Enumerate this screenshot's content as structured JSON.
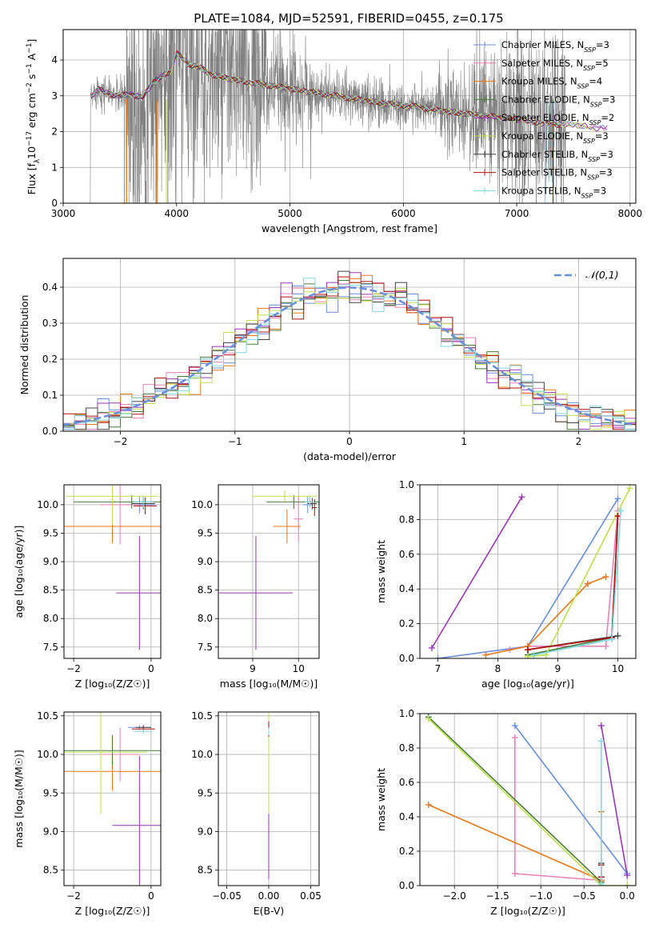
{
  "title": "PLATE=1084, MJD=52591, FIBERID=0455, z=0.175",
  "colors": {
    "chabrier_miles": "#6a8fdc",
    "salpeter_miles": "#e882b8",
    "kroupa_miles": "#e8781a",
    "chabrier_elodie": "#4a7c3a",
    "salpeter_elodie": "#9b36b9",
    "kroupa_elodie": "#c0e050",
    "chabrier_stelib": "#444444",
    "salpeter_stelib": "#b01010",
    "kroupa_stelib": "#80d8e0",
    "data": "#808080"
  },
  "chart_data": [
    {
      "id": "spectrum",
      "type": "line",
      "xlabel": "wavelength [Angstrom, rest frame]",
      "ylabel_parts": [
        "Flux [f",
        "λ",
        "10",
        "−17",
        " erg cm",
        "−2",
        " s",
        "−1",
        " A",
        "−1",
        "]"
      ],
      "xlim": [
        3000,
        8050
      ],
      "ylim": [
        0,
        4.85
      ],
      "xticks": [
        3000,
        4000,
        5000,
        6000,
        7000,
        8000
      ],
      "yticks": [
        0,
        1,
        2,
        3,
        4
      ],
      "legend": [
        {
          "main": "Chabrier MILES, N",
          "sub": "SSP",
          "tail": "=3",
          "color_key": "chabrier_miles"
        },
        {
          "main": "Salpeter MILES, N",
          "sub": "SSP",
          "tail": "=5",
          "color_key": "salpeter_miles"
        },
        {
          "main": "Kroupa MILES, N",
          "sub": "SSP",
          "tail": "=4",
          "color_key": "kroupa_miles"
        },
        {
          "main": "Chabrier ELODIE, N",
          "sub": "SSP",
          "tail": "=3",
          "color_key": "chabrier_elodie"
        },
        {
          "main": "Salpeter ELODIE, N",
          "sub": "SSP",
          "tail": "=2",
          "color_key": "salpeter_elodie"
        },
        {
          "main": "Kroupa ELODIE, N",
          "sub": "SSP",
          "tail": "=3",
          "color_key": "kroupa_elodie"
        },
        {
          "main": "Chabrier STELIB, N",
          "sub": "SSP",
          "tail": "=3",
          "color_key": "chabrier_stelib"
        },
        {
          "main": "Salpeter STELIB, N",
          "sub": "SSP",
          "tail": "=3",
          "color_key": "salpeter_stelib"
        },
        {
          "main": "Kroupa STELIB, N",
          "sub": "SSP",
          "tail": "=3",
          "color_key": "kroupa_stelib"
        }
      ],
      "continuum": [
        [
          3250,
          2.95
        ],
        [
          3300,
          3.2
        ],
        [
          3400,
          3.05
        ],
        [
          3500,
          3.0
        ],
        [
          3600,
          3.05
        ],
        [
          3700,
          2.95
        ],
        [
          3800,
          3.4
        ],
        [
          3900,
          3.6
        ],
        [
          3950,
          3.7
        ],
        [
          4000,
          4.2
        ],
        [
          4100,
          3.9
        ],
        [
          4200,
          3.8
        ],
        [
          4300,
          3.6
        ],
        [
          4500,
          3.45
        ],
        [
          4700,
          3.35
        ],
        [
          4900,
          3.25
        ],
        [
          5100,
          3.15
        ],
        [
          5300,
          3.05
        ],
        [
          5500,
          2.95
        ],
        [
          5800,
          2.8
        ],
        [
          6100,
          2.7
        ],
        [
          6400,
          2.55
        ],
        [
          6700,
          2.45
        ],
        [
          7000,
          2.35
        ],
        [
          7300,
          2.2
        ],
        [
          7500,
          2.2
        ],
        [
          7700,
          2.1
        ],
        [
          7800,
          2.1
        ]
      ],
      "data_range": [
        3230,
        7430
      ]
    },
    {
      "id": "residuals",
      "type": "line",
      "xlabel": "(data-model)/error",
      "ylabel": "Normed distribution",
      "xlim": [
        -2.5,
        2.5
      ],
      "ylim": [
        0,
        0.48
      ],
      "xticks": [
        -2,
        -1,
        0,
        1,
        2
      ],
      "yticks": [
        0.0,
        0.1,
        0.2,
        0.3,
        0.4
      ],
      "legend": "𝒩(0,1)",
      "gaussian": {
        "mu": 0,
        "sigma": 1
      }
    },
    {
      "id": "age_vs_Z",
      "type": "scatter",
      "xlabel": "Z [log₁₀(Z/Z☉)]",
      "ylabel": "age  [log₁₀(age/yr)]",
      "xlim": [
        -2.25,
        0.25
      ],
      "ylim": [
        7.3,
        10.35
      ],
      "xticks": [
        -2,
        0
      ],
      "yticks": [
        7.5,
        8.0,
        8.5,
        9.0,
        9.5,
        10.0
      ],
      "points": [
        {
          "x": -0.3,
          "xerr": 0.4,
          "y": 10.0,
          "yerr": 0.15,
          "color_key": "chabrier_miles"
        },
        {
          "x": -0.8,
          "xerr": 0.5,
          "y": 10.0,
          "yerr": 0.7,
          "color_key": "salpeter_miles"
        },
        {
          "x": -1.0,
          "xerr": 1.3,
          "y": 9.62,
          "yerr": 0.3,
          "color_key": "kroupa_miles"
        },
        {
          "x": -0.5,
          "xerr": 1.5,
          "y": 10.05,
          "yerr": 0.12,
          "color_key": "chabrier_elodie"
        },
        {
          "x": -0.3,
          "xerr": 0.6,
          "y": 8.45,
          "yerr": 1.0,
          "color_key": "salpeter_elodie"
        },
        {
          "x": -1.0,
          "xerr": 1.2,
          "y": 10.15,
          "yerr": 0.5,
          "color_key": "kroupa_elodie"
        },
        {
          "x": -0.2,
          "xerr": 0.3,
          "y": 10.02,
          "yerr": 0.1,
          "color_key": "chabrier_stelib"
        },
        {
          "x": -0.15,
          "xerr": 0.3,
          "y": 9.98,
          "yerr": 0.15,
          "color_key": "salpeter_stelib"
        },
        {
          "x": -0.2,
          "xerr": 0.25,
          "y": 10.05,
          "yerr": 0.1,
          "color_key": "kroupa_stelib"
        }
      ]
    },
    {
      "id": "age_vs_mass",
      "type": "scatter",
      "xlabel": "mass [log₁₀(M/M☉)]",
      "xlim": [
        8.25,
        10.45
      ],
      "ylim": [
        7.3,
        10.35
      ],
      "xticks": [
        9,
        10
      ],
      "yticks": [
        7.5,
        8.0,
        8.5,
        9.0,
        9.5,
        10.0
      ],
      "points": [
        {
          "x": 10.2,
          "xerr": 0.1,
          "y": 10.0,
          "yerr": 0.15,
          "color_key": "chabrier_miles"
        },
        {
          "x": 10.0,
          "xerr": 0.1,
          "y": 9.75,
          "yerr": 0.4,
          "color_key": "salpeter_miles"
        },
        {
          "x": 9.75,
          "xerr": 0.3,
          "y": 9.62,
          "yerr": 0.3,
          "color_key": "kroupa_miles"
        },
        {
          "x": 9.9,
          "xerr": 0.6,
          "y": 10.05,
          "yerr": 0.12,
          "color_key": "chabrier_elodie"
        },
        {
          "x": 9.07,
          "xerr": 0.8,
          "y": 8.45,
          "yerr": 1.0,
          "color_key": "salpeter_elodie"
        },
        {
          "x": 9.7,
          "xerr": 0.7,
          "y": 10.15,
          "yerr": 0.1,
          "color_key": "kroupa_elodie"
        },
        {
          "x": 10.3,
          "xerr": 0.1,
          "y": 10.02,
          "yerr": 0.1,
          "color_key": "chabrier_stelib"
        },
        {
          "x": 10.35,
          "xerr": 0.05,
          "y": 9.95,
          "yerr": 0.15,
          "color_key": "salpeter_stelib"
        },
        {
          "x": 10.25,
          "xerr": 0.1,
          "y": 10.05,
          "yerr": 0.1,
          "color_key": "kroupa_stelib"
        }
      ]
    },
    {
      "id": "massweight_vs_age",
      "type": "line",
      "xlabel": "age  [log₁₀(age/yr)]",
      "ylabel": "mass weight",
      "xlim": [
        6.7,
        10.3
      ],
      "ylim": [
        0,
        1.0
      ],
      "xticks": [
        7,
        8,
        9,
        10
      ],
      "yticks": [
        0.0,
        0.2,
        0.4,
        0.6,
        0.8,
        1.0
      ],
      "series": [
        {
          "color_key": "chabrier_miles",
          "points": [
            [
              7.0,
              0.0
            ],
            [
              8.5,
              0.07
            ],
            [
              10.0,
              0.92
            ]
          ]
        },
        {
          "color_key": "salpeter_miles",
          "points": [
            [
              8.2,
              0.05
            ],
            [
              8.5,
              0.07
            ],
            [
              9.8,
              0.07
            ],
            [
              10.0,
              0.85
            ]
          ]
        },
        {
          "color_key": "kroupa_miles",
          "points": [
            [
              7.8,
              0.02
            ],
            [
              8.5,
              0.07
            ],
            [
              9.5,
              0.43
            ],
            [
              9.8,
              0.47
            ]
          ]
        },
        {
          "color_key": "chabrier_elodie",
          "points": [
            [
              8.5,
              0.02
            ],
            [
              9.9,
              0.12
            ],
            [
              10.0,
              0.82
            ]
          ]
        },
        {
          "color_key": "salpeter_elodie",
          "points": [
            [
              6.9,
              0.06
            ],
            [
              8.4,
              0.93
            ]
          ]
        },
        {
          "color_key": "kroupa_elodie",
          "points": [
            [
              8.5,
              0.01
            ],
            [
              8.8,
              0.02
            ],
            [
              10.2,
              0.98
            ]
          ]
        },
        {
          "color_key": "chabrier_stelib",
          "points": [
            [
              8.5,
              0.05
            ],
            [
              10.0,
              0.13
            ]
          ]
        },
        {
          "color_key": "salpeter_stelib",
          "points": [
            [
              8.5,
              0.05
            ],
            [
              9.9,
              0.12
            ],
            [
              10.0,
              0.82
            ]
          ]
        },
        {
          "color_key": "kroupa_stelib",
          "points": [
            [
              8.6,
              0.02
            ],
            [
              9.9,
              0.11
            ],
            [
              10.05,
              0.85
            ]
          ]
        }
      ]
    },
    {
      "id": "mass_vs_Z",
      "type": "scatter",
      "xlabel": "Z [log₁₀(Z/Z☉)]",
      "ylabel": "mass [log₁₀(M/M☉)]",
      "xlim": [
        -2.25,
        0.25
      ],
      "ylim": [
        8.3,
        10.55
      ],
      "xticks": [
        -2,
        0
      ],
      "yticks": [
        8.5,
        9.0,
        9.5,
        10.0,
        10.5
      ],
      "points": [
        {
          "x": -0.3,
          "xerr": 0.3,
          "y": 10.35,
          "yerr": 0.03,
          "color_key": "chabrier_miles"
        },
        {
          "x": -0.8,
          "xerr": 0.5,
          "y": 10.0,
          "yerr": 0.35,
          "color_key": "salpeter_miles"
        },
        {
          "x": -1.0,
          "xerr": 1.3,
          "y": 9.78,
          "yerr": 0.25,
          "color_key": "kroupa_miles"
        },
        {
          "x": -1.0,
          "xerr": 1.3,
          "y": 10.05,
          "yerr": 0.2,
          "color_key": "chabrier_elodie"
        },
        {
          "x": -0.3,
          "xerr": 0.7,
          "y": 9.08,
          "yerr": 0.9,
          "color_key": "salpeter_elodie"
        },
        {
          "x": -1.3,
          "xerr": 1.2,
          "y": 10.03,
          "yerr": 0.8,
          "color_key": "kroupa_elodie"
        },
        {
          "x": -0.2,
          "xerr": 0.2,
          "y": 10.35,
          "yerr": 0.03,
          "color_key": "chabrier_stelib"
        },
        {
          "x": -0.2,
          "xerr": 0.3,
          "y": 10.33,
          "yerr": 0.03,
          "color_key": "salpeter_stelib"
        },
        {
          "x": -0.2,
          "xerr": 0.25,
          "y": 10.3,
          "yerr": 0.03,
          "color_key": "kroupa_stelib"
        }
      ]
    },
    {
      "id": "mass_vs_ebv",
      "type": "scatter",
      "xlabel": "E(B-V)",
      "xlim": [
        -0.06,
        0.06
      ],
      "ylim": [
        8.3,
        10.55
      ],
      "xticks": [
        -0.05,
        0.0,
        0.05
      ],
      "xtick_labels": [
        "−0.05",
        "0.00",
        "0.05"
      ],
      "yticks": [
        8.5,
        9.0,
        9.5,
        10.0,
        10.5
      ],
      "points": [
        {
          "x": 0.0,
          "y": 10.35,
          "yerr": 0.05,
          "color_key": "chabrier_miles"
        },
        {
          "x": 0.0,
          "y": 10.0,
          "yerr": 0.35,
          "color_key": "salpeter_miles"
        },
        {
          "x": 0.0,
          "y": 9.78,
          "yerr": 0.25,
          "color_key": "kroupa_miles"
        },
        {
          "x": 0.0,
          "y": 10.05,
          "yerr": 0.2,
          "color_key": "chabrier_elodie"
        },
        {
          "x": 0.0,
          "y": 9.08,
          "yerr": 0.7,
          "color_key": "salpeter_elodie"
        },
        {
          "x": 0.0,
          "y": 10.03,
          "yerr": 0.8,
          "color_key": "kroupa_elodie"
        },
        {
          "x": 0.0,
          "y": 10.35,
          "yerr": 0.05,
          "color_key": "chabrier_stelib"
        },
        {
          "x": 0.0,
          "y": 10.33,
          "yerr": 0.1,
          "color_key": "salpeter_stelib"
        },
        {
          "x": 0.0,
          "y": 10.3,
          "yerr": 0.05,
          "color_key": "kroupa_stelib"
        }
      ]
    },
    {
      "id": "massweight_vs_Z",
      "type": "line",
      "xlabel": "Z [log₁₀(Z/Z☉)]",
      "ylabel": "mass weight",
      "xlim": [
        -2.4,
        0.1
      ],
      "ylim": [
        0,
        1.0
      ],
      "xticks": [
        -2.0,
        -1.5,
        -1.0,
        -0.5,
        0.0
      ],
      "xtick_labels": [
        "−2.0",
        "−1.5",
        "−1.0",
        "−0.5",
        "0.0"
      ],
      "yticks": [
        0.0,
        0.2,
        0.4,
        0.6,
        0.8,
        1.0
      ],
      "series": [
        {
          "color_key": "chabrier_miles",
          "points": [
            [
              -1.3,
              0.93
            ],
            [
              0.0,
              0.07
            ]
          ]
        },
        {
          "color_key": "salpeter_miles",
          "points": [
            [
              -1.3,
              0.86
            ],
            [
              -1.3,
              0.07
            ],
            [
              -0.3,
              0.03
            ]
          ]
        },
        {
          "color_key": "kroupa_miles",
          "points": [
            [
              -2.3,
              0.47
            ],
            [
              -0.3,
              0.03
            ],
            [
              -0.3,
              0.43
            ]
          ]
        },
        {
          "color_key": "chabrier_elodie",
          "points": [
            [
              -2.3,
              0.98
            ],
            [
              -0.3,
              0.02
            ]
          ]
        },
        {
          "color_key": "salpeter_elodie",
          "points": [
            [
              -0.3,
              0.93
            ],
            [
              0.0,
              0.06
            ]
          ]
        },
        {
          "color_key": "kroupa_elodie",
          "points": [
            [
              -2.3,
              0.97
            ],
            [
              -0.3,
              0.0
            ],
            [
              0.0,
              0.0
            ]
          ]
        },
        {
          "color_key": "chabrier_stelib",
          "points": [
            [
              -0.3,
              0.13
            ],
            [
              -0.3,
              0.05
            ]
          ]
        },
        {
          "color_key": "salpeter_stelib",
          "points": [
            [
              -0.3,
              0.12
            ],
            [
              -0.3,
              0.05
            ]
          ]
        },
        {
          "color_key": "kroupa_stelib",
          "points": [
            [
              -0.3,
              0.84
            ],
            [
              -0.3,
              0.01
            ]
          ]
        }
      ]
    }
  ]
}
